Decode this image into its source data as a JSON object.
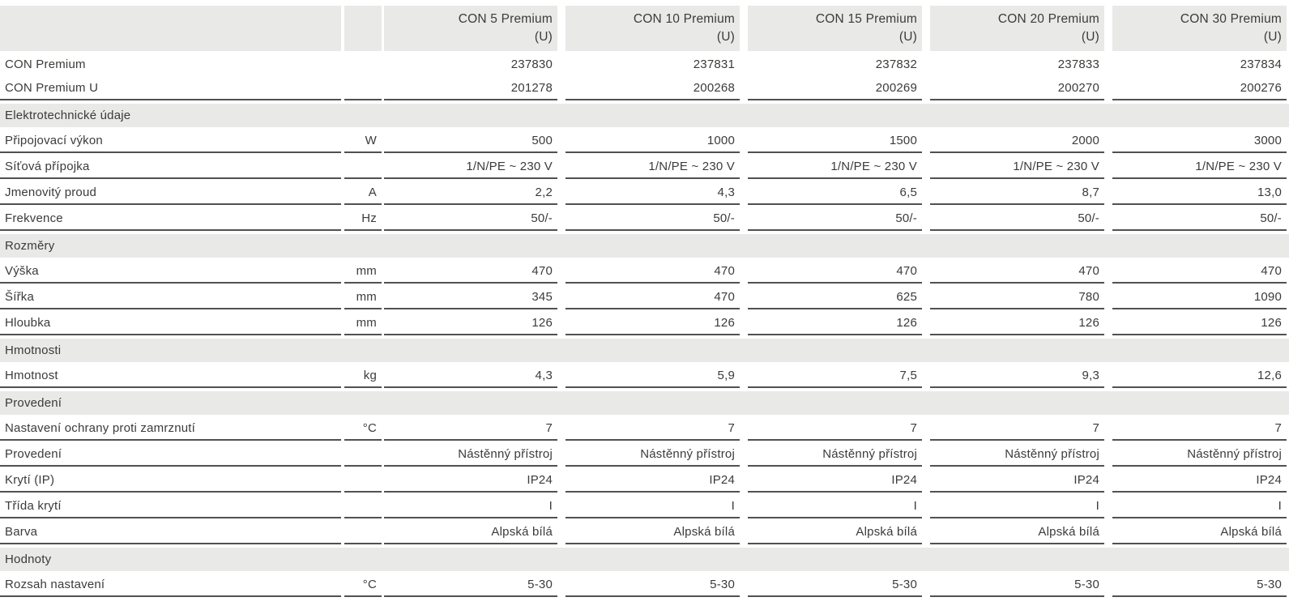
{
  "colors": {
    "band_gray": "#e9e9e8",
    "rule_gray": "#505153",
    "text_gray": "#3b3b3a",
    "background": "#ffffff"
  },
  "table": {
    "header": {
      "models": [
        "CON 5 Premium",
        "CON 10 Premium",
        "CON 15 Premium",
        "CON 20 Premium",
        "CON 30 Premium"
      ],
      "suffix": "(U)"
    },
    "rows": [
      {
        "type": "model",
        "label": "CON Premium",
        "unit": "",
        "values": [
          "237830",
          "237831",
          "237832",
          "237833",
          "237834"
        ]
      },
      {
        "type": "model",
        "label": "CON Premium U",
        "unit": "",
        "values": [
          "201278",
          "200268",
          "200269",
          "200270",
          "200276"
        ]
      },
      {
        "type": "section",
        "label": "Elektrotechnické údaje"
      },
      {
        "type": "data",
        "label": "Připojovací výkon",
        "unit": "W",
        "values": [
          "500",
          "1000",
          "1500",
          "2000",
          "3000"
        ]
      },
      {
        "type": "data",
        "label": "Síťová přípojka",
        "unit": "",
        "values": [
          "1/N/PE ~ 230 V",
          "1/N/PE ~ 230 V",
          "1/N/PE ~ 230 V",
          "1/N/PE ~ 230 V",
          "1/N/PE ~ 230 V"
        ]
      },
      {
        "type": "data",
        "label": "Jmenovitý proud",
        "unit": "A",
        "values": [
          "2,2",
          "4,3",
          "6,5",
          "8,7",
          "13,0"
        ]
      },
      {
        "type": "data",
        "label": "Frekvence",
        "unit": "Hz",
        "values": [
          "50/-",
          "50/-",
          "50/-",
          "50/-",
          "50/-"
        ]
      },
      {
        "type": "section",
        "label": "Rozměry"
      },
      {
        "type": "data",
        "label": "Výška",
        "unit": "mm",
        "values": [
          "470",
          "470",
          "470",
          "470",
          "470"
        ]
      },
      {
        "type": "data",
        "label": "Šířka",
        "unit": "mm",
        "values": [
          "345",
          "470",
          "625",
          "780",
          "1090"
        ]
      },
      {
        "type": "data",
        "label": "Hloubka",
        "unit": "mm",
        "values": [
          "126",
          "126",
          "126",
          "126",
          "126"
        ]
      },
      {
        "type": "section",
        "label": "Hmotnosti"
      },
      {
        "type": "data",
        "label": "Hmotnost",
        "unit": "kg",
        "values": [
          "4,3",
          "5,9",
          "7,5",
          "9,3",
          "12,6"
        ]
      },
      {
        "type": "section",
        "label": "Provedení"
      },
      {
        "type": "data",
        "label": "Nastavení ochrany proti zamrznutí",
        "unit": "°C",
        "values": [
          "7",
          "7",
          "7",
          "7",
          "7"
        ]
      },
      {
        "type": "data",
        "label": "Provedení",
        "unit": "",
        "values": [
          "Nástěnný přístroj",
          "Nástěnný přístroj",
          "Nástěnný přístroj",
          "Nástěnný přístroj",
          "Nástěnný přístroj"
        ]
      },
      {
        "type": "data",
        "label": "Krytí (IP)",
        "unit": "",
        "values": [
          "IP24",
          "IP24",
          "IP24",
          "IP24",
          "IP24"
        ]
      },
      {
        "type": "data",
        "label": "Třída krytí",
        "unit": "",
        "values": [
          "I",
          "I",
          "I",
          "I",
          "I"
        ]
      },
      {
        "type": "data",
        "label": "Barva",
        "unit": "",
        "values": [
          "Alpská bílá",
          "Alpská bílá",
          "Alpská bílá",
          "Alpská bílá",
          "Alpská bílá"
        ]
      },
      {
        "type": "section",
        "label": "Hodnoty"
      },
      {
        "type": "data",
        "label": "Rozsah nastavení",
        "unit": "°C",
        "values": [
          "5-30",
          "5-30",
          "5-30",
          "5-30",
          "5-30"
        ]
      }
    ]
  }
}
